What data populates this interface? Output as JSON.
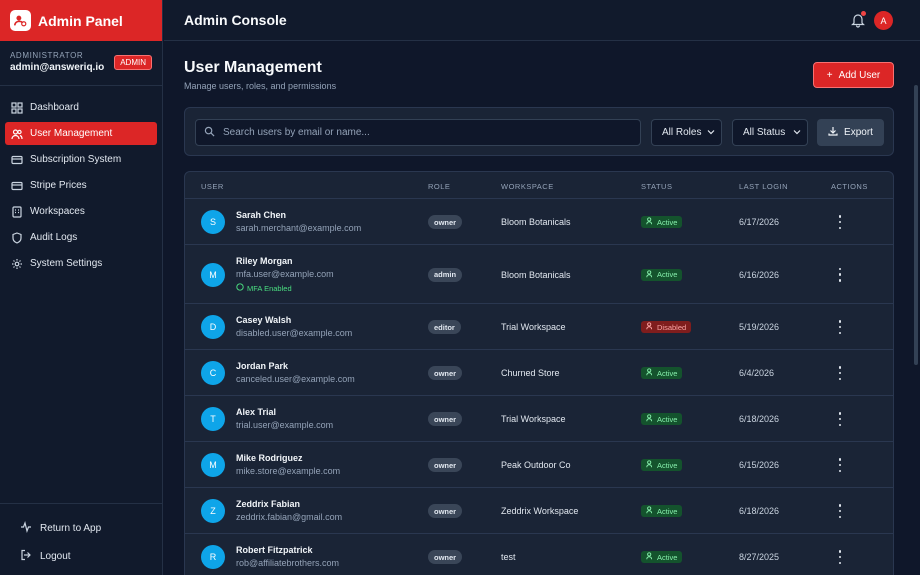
{
  "brand": {
    "title": "Admin Panel"
  },
  "admin": {
    "role": "ADMINISTRATOR",
    "email": "admin@answeriq.io",
    "badge": "ADMIN"
  },
  "sidebar": {
    "items": [
      {
        "label": "Dashboard",
        "icon": "grid-icon",
        "active": false
      },
      {
        "label": "User Management",
        "icon": "users-icon",
        "active": true
      },
      {
        "label": "Subscription System",
        "icon": "credit-card-icon",
        "active": false
      },
      {
        "label": "Stripe Prices",
        "icon": "credit-card-icon",
        "active": false
      },
      {
        "label": "Workspaces",
        "icon": "building-icon",
        "active": false
      },
      {
        "label": "Audit Logs",
        "icon": "shield-icon",
        "active": false
      },
      {
        "label": "System Settings",
        "icon": "gear-icon",
        "active": false
      }
    ],
    "bottom": [
      {
        "label": "Return to App",
        "icon": "activity-icon"
      },
      {
        "label": "Logout",
        "icon": "logout-icon"
      }
    ]
  },
  "topbar": {
    "title": "Admin Console",
    "avatar": "A"
  },
  "page": {
    "title": "User Management",
    "subtitle": "Manage users, roles, and permissions",
    "add_button": "Add User"
  },
  "filters": {
    "search_placeholder": "Search users by email or name...",
    "roles": "All Roles",
    "status": "All Status",
    "export": "Export"
  },
  "table": {
    "headers": {
      "user": "USER",
      "role": "ROLE",
      "workspace": "WORKSPACE",
      "status": "STATUS",
      "last_login": "LAST LOGIN",
      "actions": "ACTIONS"
    },
    "rows": [
      {
        "initial": "S",
        "name": "Sarah Chen",
        "email": "sarah.merchant@example.com",
        "mfa": "",
        "role": "owner",
        "workspace": "Bloom Botanicals",
        "status": "Active",
        "last_login": "6/17/2026"
      },
      {
        "initial": "M",
        "name": "Riley Morgan",
        "email": "mfa.user@example.com",
        "mfa": "MFA Enabled",
        "role": "admin",
        "workspace": "Bloom Botanicals",
        "status": "Active",
        "last_login": "6/16/2026"
      },
      {
        "initial": "D",
        "name": "Casey Walsh",
        "email": "disabled.user@example.com",
        "mfa": "",
        "role": "editor",
        "workspace": "Trial Workspace",
        "status": "Disabled",
        "last_login": "5/19/2026"
      },
      {
        "initial": "C",
        "name": "Jordan Park",
        "email": "canceled.user@example.com",
        "mfa": "",
        "role": "owner",
        "workspace": "Churned Store",
        "status": "Active",
        "last_login": "6/4/2026"
      },
      {
        "initial": "T",
        "name": "Alex Trial",
        "email": "trial.user@example.com",
        "mfa": "",
        "role": "owner",
        "workspace": "Trial Workspace",
        "status": "Active",
        "last_login": "6/18/2026"
      },
      {
        "initial": "M",
        "name": "Mike Rodriguez",
        "email": "mike.store@example.com",
        "mfa": "",
        "role": "owner",
        "workspace": "Peak Outdoor Co",
        "status": "Active",
        "last_login": "6/15/2026"
      },
      {
        "initial": "Z",
        "name": "Zeddrix Fabian",
        "email": "zeddrix.fabian@gmail.com",
        "mfa": "",
        "role": "owner",
        "workspace": "Zeddrix Workspace",
        "status": "Active",
        "last_login": "6/18/2026"
      },
      {
        "initial": "R",
        "name": "Robert Fitzpatrick",
        "email": "rob@affiliatebrothers.com",
        "mfa": "",
        "role": "owner",
        "workspace": "test",
        "status": "Active",
        "last_login": "8/27/2025"
      }
    ]
  },
  "colors": {
    "accent": "#dc2626",
    "background": "#0f172a",
    "card": "#1a2436",
    "active_status": "#86efac",
    "disabled_status": "#fca5a5",
    "avatar": "#0ea5e9"
  }
}
